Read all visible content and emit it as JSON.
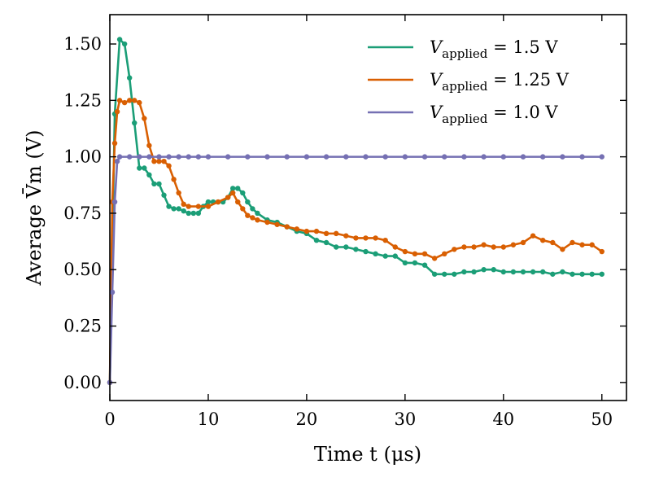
{
  "chart_data": {
    "type": "line",
    "title": "",
    "xlabel": "Time t (μs)",
    "ylabel": "Average V̄m (V)",
    "xlim": [
      0,
      52.5
    ],
    "ylim": [
      -0.08,
      1.63
    ],
    "xticks": [
      0,
      10,
      20,
      30,
      40,
      50
    ],
    "yticks": [
      0.0,
      0.25,
      0.5,
      0.75,
      1.0,
      1.25,
      1.5
    ],
    "xtick_labels": [
      "0",
      "10",
      "20",
      "30",
      "40",
      "50"
    ],
    "ytick_labels": [
      "0.00",
      "0.25",
      "0.50",
      "0.75",
      "1.00",
      "1.25",
      "1.50"
    ],
    "legend_position": "top-right",
    "series": [
      {
        "name": "V_applied = 1.5 V",
        "legend_label": "Vapplied = 1.5 V",
        "color": "#1b9e77",
        "x": [
          0,
          0.5,
          1.0,
          1.5,
          2.0,
          2.5,
          3.0,
          3.5,
          4.0,
          4.5,
          5.0,
          5.5,
          6.0,
          6.5,
          7.0,
          7.5,
          8.0,
          8.5,
          9.0,
          9.5,
          10.0,
          10.5,
          11.0,
          11.5,
          12.0,
          12.5,
          13.0,
          13.5,
          14.0,
          14.5,
          15.0,
          16.0,
          17.0,
          18.0,
          19.0,
          20.0,
          21.0,
          22.0,
          23.0,
          24.0,
          25.0,
          26.0,
          27.0,
          28.0,
          29.0,
          30.0,
          31.0,
          32.0,
          33.0,
          34.0,
          35.0,
          36.0,
          37.0,
          38.0,
          39.0,
          40.0,
          41.0,
          42.0,
          43.0,
          44.0,
          45.0,
          46.0,
          47.0,
          48.0,
          49.0,
          50.0
        ],
        "y": [
          0.0,
          1.19,
          1.52,
          1.5,
          1.35,
          1.15,
          0.95,
          0.95,
          0.92,
          0.88,
          0.88,
          0.83,
          0.78,
          0.77,
          0.77,
          0.76,
          0.75,
          0.75,
          0.75,
          0.78,
          0.8,
          0.8,
          0.8,
          0.8,
          0.82,
          0.86,
          0.86,
          0.84,
          0.8,
          0.77,
          0.75,
          0.72,
          0.71,
          0.69,
          0.67,
          0.66,
          0.63,
          0.62,
          0.6,
          0.6,
          0.59,
          0.58,
          0.57,
          0.56,
          0.56,
          0.53,
          0.53,
          0.52,
          0.48,
          0.48,
          0.48,
          0.49,
          0.49,
          0.5,
          0.5,
          0.49,
          0.49,
          0.49,
          0.49,
          0.49,
          0.48,
          0.49,
          0.48,
          0.48,
          0.48,
          0.48
        ]
      },
      {
        "name": "V_applied = 1.25 V",
        "legend_label": "Vapplied = 1.25 V",
        "color": "#d95f02",
        "x": [
          0,
          0.25,
          0.5,
          0.75,
          1.0,
          1.5,
          2.0,
          2.5,
          3.0,
          3.5,
          4.0,
          4.5,
          5.0,
          5.5,
          6.0,
          6.5,
          7.0,
          7.5,
          8.0,
          9.0,
          10.0,
          11.0,
          12.0,
          12.5,
          13.0,
          13.5,
          14.0,
          14.5,
          15.0,
          16.0,
          17.0,
          18.0,
          19.0,
          20.0,
          21.0,
          22.0,
          23.0,
          24.0,
          25.0,
          26.0,
          27.0,
          28.0,
          29.0,
          30.0,
          31.0,
          32.0,
          33.0,
          34.0,
          35.0,
          36.0,
          37.0,
          38.0,
          39.0,
          40.0,
          41.0,
          42.0,
          43.0,
          44.0,
          45.0,
          46.0,
          47.0,
          48.0,
          49.0,
          50.0
        ],
        "y": [
          0.0,
          0.8,
          1.06,
          1.2,
          1.25,
          1.24,
          1.25,
          1.25,
          1.24,
          1.17,
          1.05,
          0.98,
          0.98,
          0.98,
          0.96,
          0.9,
          0.84,
          0.79,
          0.78,
          0.78,
          0.78,
          0.8,
          0.82,
          0.84,
          0.8,
          0.77,
          0.74,
          0.73,
          0.72,
          0.71,
          0.7,
          0.69,
          0.68,
          0.67,
          0.67,
          0.66,
          0.66,
          0.65,
          0.64,
          0.64,
          0.64,
          0.63,
          0.6,
          0.58,
          0.57,
          0.57,
          0.55,
          0.57,
          0.59,
          0.6,
          0.6,
          0.61,
          0.6,
          0.6,
          0.61,
          0.62,
          0.65,
          0.63,
          0.62,
          0.59,
          0.62,
          0.61,
          0.61,
          0.58
        ]
      },
      {
        "name": "V_applied = 1.0 V",
        "legend_label": "Vapplied = 1.0 V",
        "color": "#7570b3",
        "x": [
          0,
          0.25,
          0.5,
          0.75,
          1.0,
          2.0,
          3.0,
          4.0,
          5.0,
          6.0,
          7.0,
          8.0,
          9.0,
          10.0,
          12.0,
          14.0,
          16.0,
          18.0,
          20.0,
          22.0,
          24.0,
          26.0,
          28.0,
          30.0,
          32.0,
          34.0,
          36.0,
          38.0,
          40.0,
          42.0,
          44.0,
          46.0,
          48.0,
          50.0
        ],
        "y": [
          0.0,
          0.4,
          0.8,
          0.98,
          1.0,
          1.0,
          1.0,
          1.0,
          1.0,
          1.0,
          1.0,
          1.0,
          1.0,
          1.0,
          1.0,
          1.0,
          1.0,
          1.0,
          1.0,
          1.0,
          1.0,
          1.0,
          1.0,
          1.0,
          1.0,
          1.0,
          1.0,
          1.0,
          1.0,
          1.0,
          1.0,
          1.0,
          1.0,
          1.0
        ]
      }
    ]
  }
}
